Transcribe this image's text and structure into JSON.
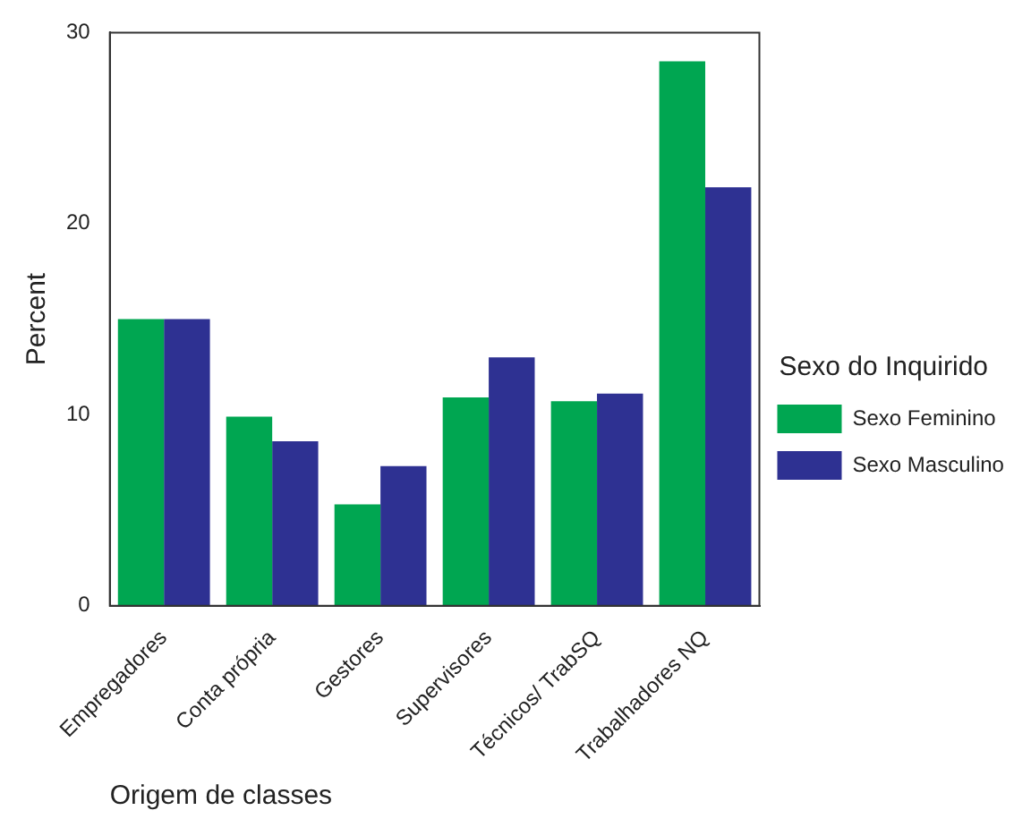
{
  "chart_data": {
    "type": "bar",
    "xlabel": "Origem de classes",
    "ylabel": "Percent",
    "legend_title": "Sexo do Inquirido",
    "legend": "right",
    "categories": [
      "Empregadores",
      "Conta própria",
      "Gestores",
      "Supervisores",
      "Técnicos/ TrabSQ",
      "Trabalhadores NQ"
    ],
    "series": [
      {
        "name": "Sexo Feminino",
        "color": "#00a651",
        "values": [
          15.0,
          9.9,
          5.3,
          10.9,
          10.7,
          28.5
        ]
      },
      {
        "name": "Sexo Masculino",
        "color": "#2e3192",
        "values": [
          15.0,
          8.6,
          7.3,
          13.0,
          11.1,
          21.9
        ]
      }
    ],
    "ylim": [
      0,
      30
    ],
    "yticks": [
      0,
      10,
      20,
      30
    ],
    "grid": false
  }
}
